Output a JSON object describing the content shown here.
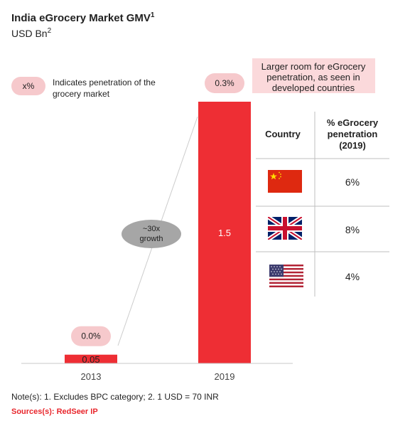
{
  "chart_data": {
    "type": "bar",
    "title": "India eGrocery Market GMV",
    "title_sup": "1",
    "subtitle": "USD Bn",
    "subtitle_sup": "2",
    "categories": [
      "2013",
      "2019"
    ],
    "values": [
      0.05,
      1.5
    ],
    "value_labels": [
      "0.05",
      "1.5"
    ],
    "penetration_labels": [
      "0.0%",
      "0.3%"
    ],
    "growth_label_line1": "~30x",
    "growth_label_line2": "growth",
    "bar_color": "#ee2e34",
    "legend": {
      "swatch_label": "x%",
      "text_line1": "Indicates penetration of the",
      "text_line2": "grocery market"
    },
    "callout": {
      "line1": "Larger room for eGrocery",
      "line2": "penetration, as seen in",
      "line3": "developed countries"
    },
    "table": {
      "header_country": "Country",
      "header_pen_line1": "% eGrocery",
      "header_pen_line2": "penetration",
      "header_pen_line3": "(2019)",
      "rows": [
        {
          "flag": "china-flag",
          "value": "6%"
        },
        {
          "flag": "uk-flag",
          "value": "8%"
        },
        {
          "flag": "usa-flag",
          "value": "4%"
        }
      ]
    }
  },
  "footer": {
    "notes": "Note(s): 1. Excludes BPC category; 2. 1 USD = 70 INR",
    "sources": "Sources(s): RedSeer IP"
  },
  "colors": {
    "bar": "#ee2e34",
    "pill": "#f6c9cc",
    "growth_ellipse": "#a6a6a6",
    "callout_bg": "#fbd9db",
    "sources_text": "#e8262c"
  }
}
